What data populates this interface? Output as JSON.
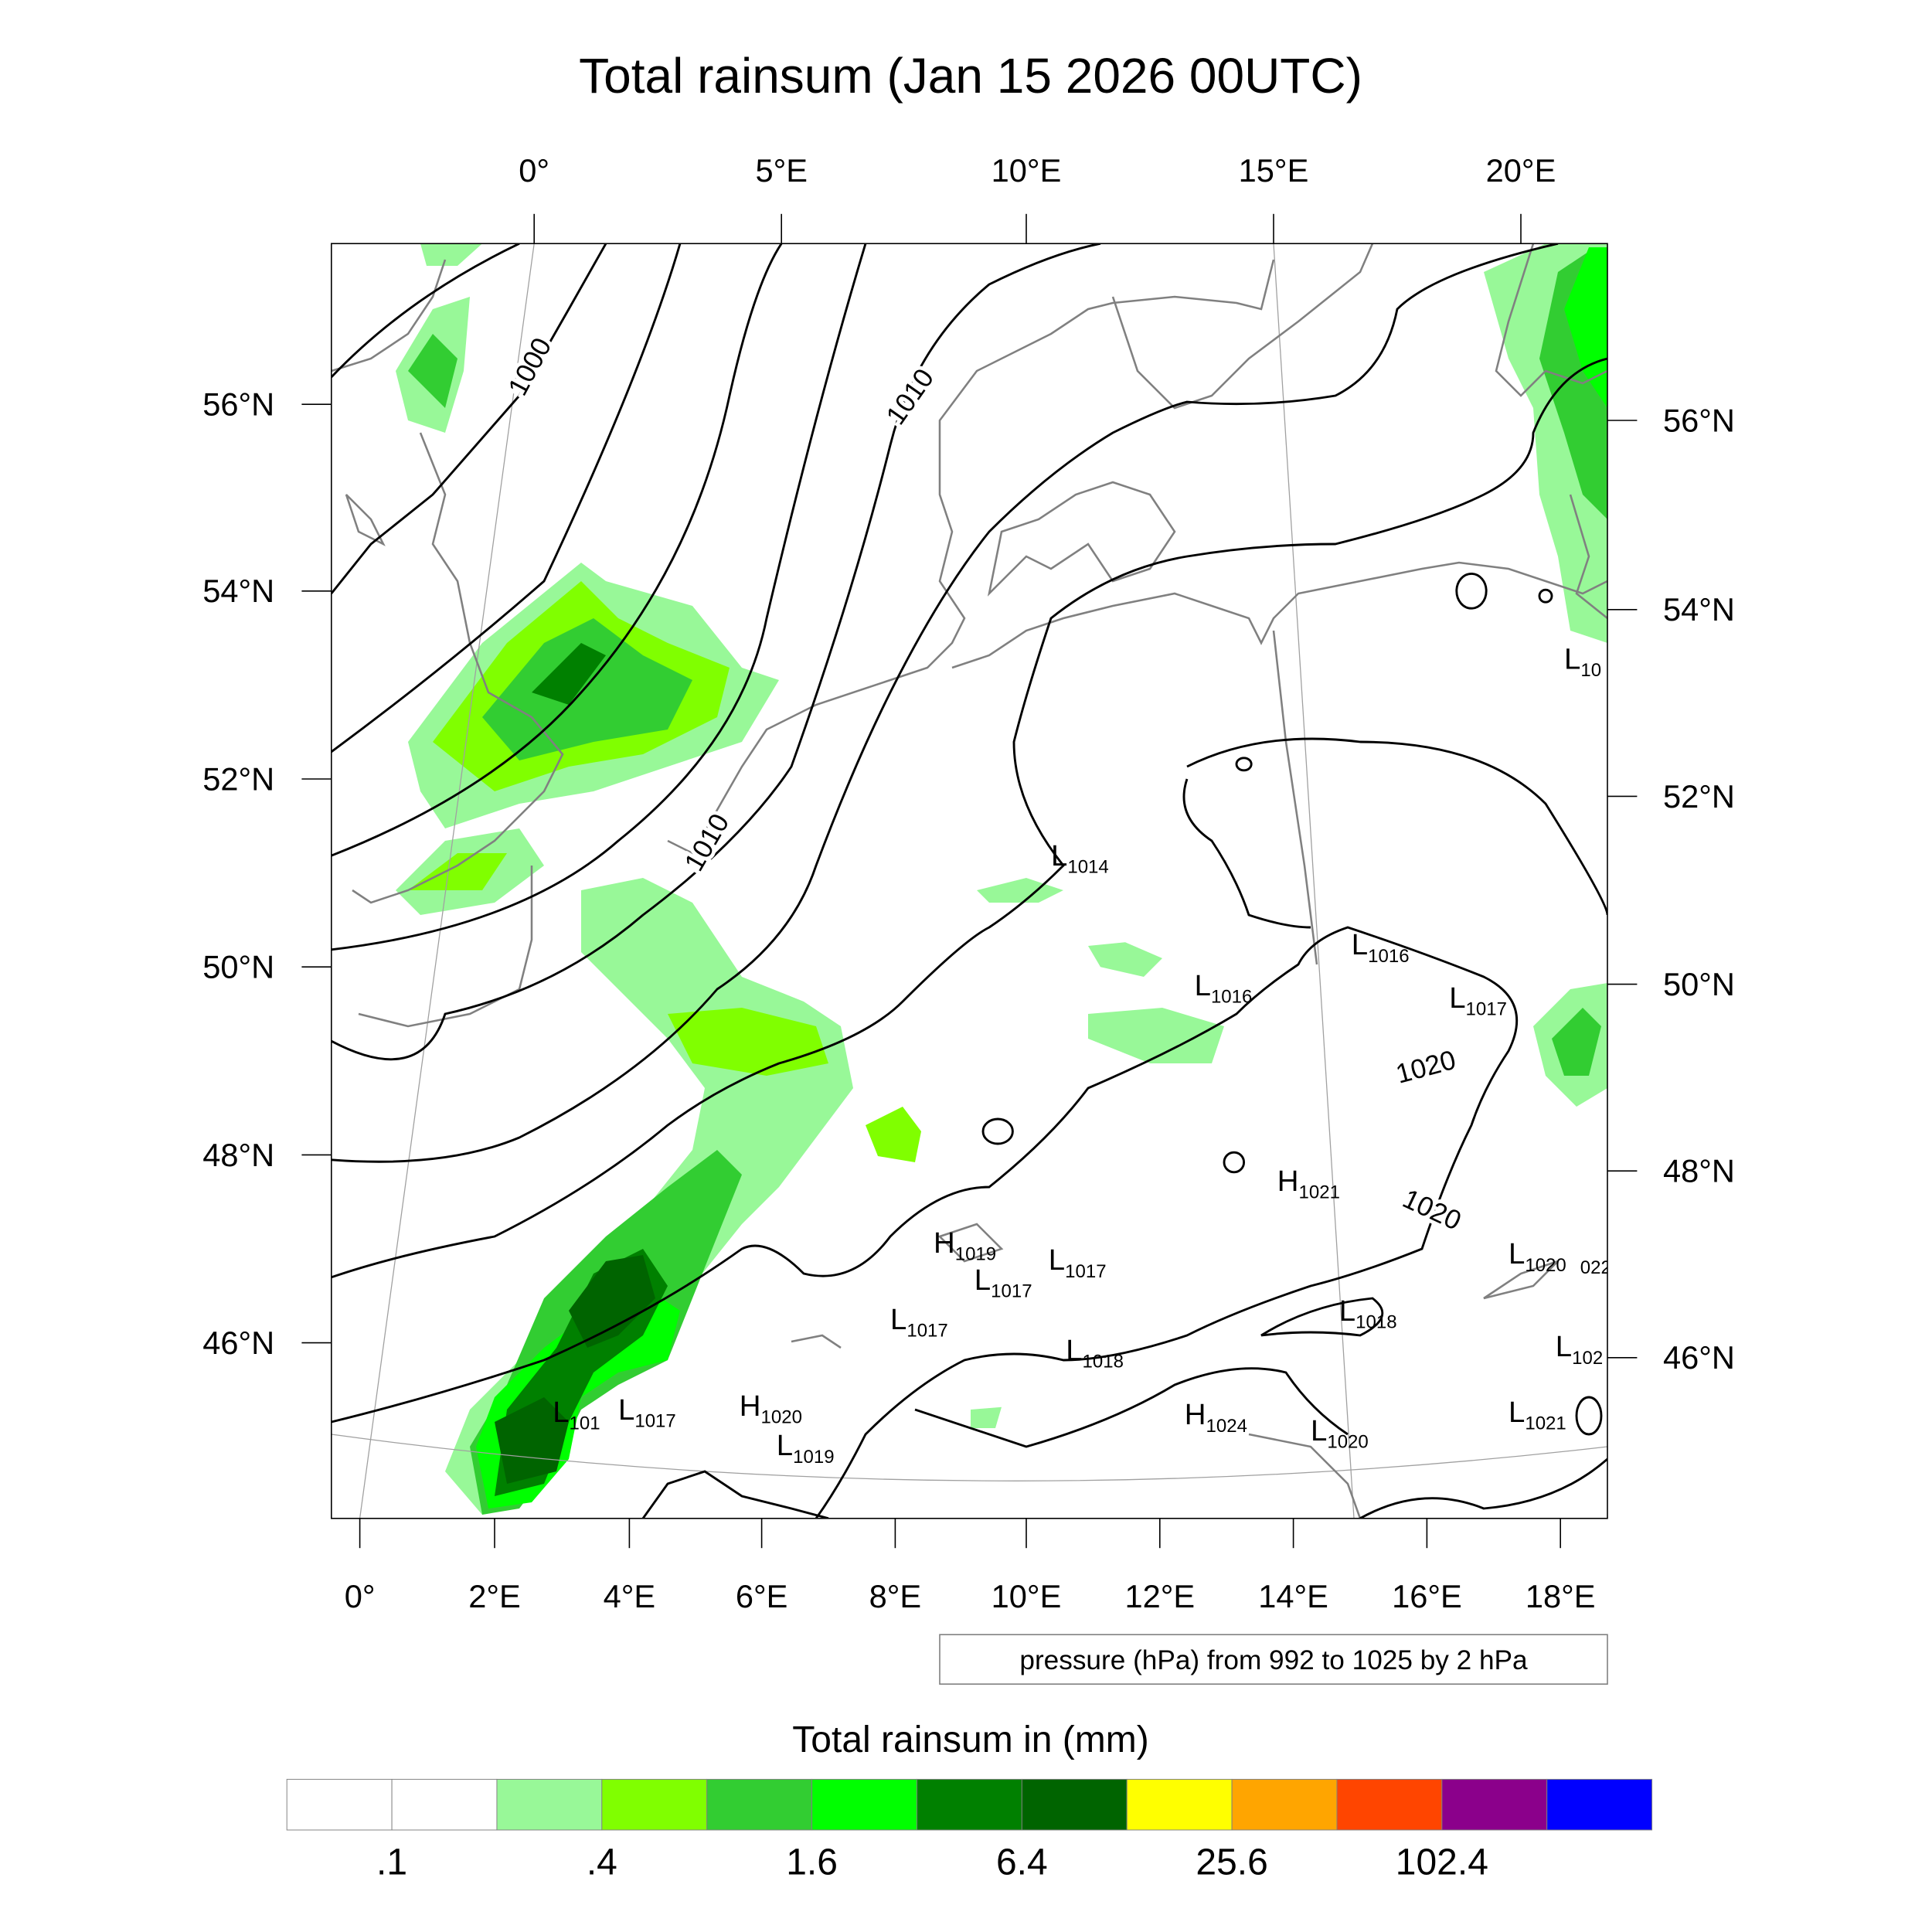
{
  "title": "Total rainsum (Jan 15 2026 00UTC)",
  "axes": {
    "top_lon": [
      "0°",
      "5°E",
      "10°E",
      "15°E",
      "20°E"
    ],
    "bottom_lon": [
      "0°",
      "2°E",
      "4°E",
      "6°E",
      "8°E",
      "10°E",
      "12°E",
      "14°E",
      "16°E",
      "18°E"
    ],
    "left_lat": [
      "56°N",
      "54°N",
      "52°N",
      "50°N",
      "48°N",
      "46°N"
    ],
    "right_lat": [
      "56°N",
      "54°N",
      "52°N",
      "50°N",
      "48°N",
      "46°N"
    ]
  },
  "contour_labels": [
    "1000",
    "1010",
    "1010",
    "1020",
    "1020"
  ],
  "pressure_centers": [
    {
      "type": "L",
      "value": "1014"
    },
    {
      "type": "L",
      "value": "1016"
    },
    {
      "type": "L",
      "value": "1016"
    },
    {
      "type": "L",
      "value": "1017"
    },
    {
      "type": "H",
      "value": "1021"
    },
    {
      "type": "L",
      "value": "1020"
    },
    {
      "type": "L",
      "value": "102"
    },
    {
      "type": "L",
      "value": "1021"
    },
    {
      "type": "L",
      "value": "10"
    },
    {
      "type": "H",
      "value": "1019"
    },
    {
      "type": "L",
      "value": "1017"
    },
    {
      "type": "L",
      "value": "1017"
    },
    {
      "type": "L",
      "value": "1017"
    },
    {
      "type": "L",
      "value": "1018"
    },
    {
      "type": "L",
      "value": "1018"
    },
    {
      "type": "H",
      "value": "1024"
    },
    {
      "type": "L",
      "value": "1020"
    },
    {
      "type": "L",
      "value": "101"
    },
    {
      "type": "L",
      "value": "1017"
    },
    {
      "type": "H",
      "value": "1020"
    },
    {
      "type": "L",
      "value": "1019"
    }
  ],
  "partial_label": "022",
  "contour_info": "pressure (hPa) from 992 to 1025 by 2 hPa",
  "colorbar": {
    "title": "Total rainsum in (mm)",
    "labels": [
      ".1",
      ".4",
      "1.6",
      "6.4",
      "25.6",
      "102.4"
    ],
    "colors": [
      "#ffffff",
      "#ffffff",
      "#98f898",
      "#80ff00",
      "#32cd32",
      "#00ff00",
      "#008000",
      "#006400",
      "#ffff00",
      "#ffa500",
      "#ff4500",
      "#8b008b",
      "#0000ff"
    ]
  },
  "colors": {
    "coast": "#808080",
    "isobar": "#000000",
    "grid": "#a0a0a0"
  }
}
